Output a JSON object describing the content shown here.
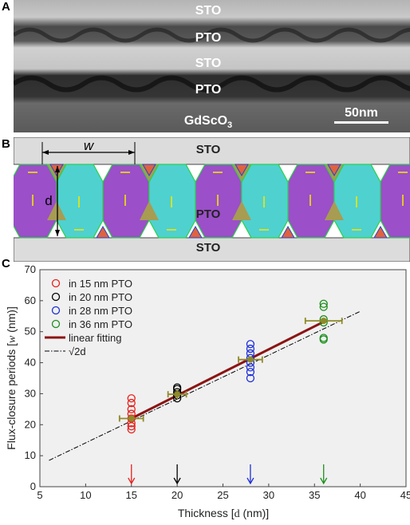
{
  "panel_a": {
    "letter": "A",
    "layers": [
      "STO",
      "PTO",
      "STO",
      "PTO",
      "GdScO3"
    ],
    "substrate_main": "GdScO",
    "substrate_sub": "3",
    "scale_bar": "50nm"
  },
  "panel_b": {
    "letter": "B",
    "top_label": "STO",
    "middle_label": "PTO",
    "bottom_label": "STO",
    "w_label": "w",
    "d_label": "d",
    "colors": {
      "magenta": "#9b4fc8",
      "cyan": "#4fd1d0",
      "olive": "#a79c52",
      "orange": "#e0623e",
      "arrow": "#f2e600"
    }
  },
  "panel_c": {
    "letter": "C",
    "chart_data": {
      "type": "scatter",
      "xlabel_main": "Thickness [",
      "xlabel_var": "d",
      "xlabel_unit": " (nm)]",
      "ylabel_main": "Flux-closure periods [",
      "ylabel_var": "w",
      "ylabel_unit": " (nm)]",
      "xlim": [
        5,
        45
      ],
      "ylim": [
        0,
        70
      ],
      "xticks": [
        5,
        10,
        15,
        20,
        25,
        30,
        35,
        40,
        45
      ],
      "yticks": [
        0,
        10,
        20,
        30,
        40,
        50,
        60,
        70
      ],
      "series": [
        {
          "name": "in 15 nm PTO",
          "color": "#e8201c",
          "x": 15,
          "values": [
            18.5,
            19.5,
            20.5,
            22,
            23.5,
            25,
            27,
            28.5
          ]
        },
        {
          "name": "in 20 nm PTO",
          "color": "#000000",
          "x": 20,
          "values": [
            28.5,
            29.5,
            30.5,
            31.5,
            32
          ]
        },
        {
          "name": "in 28 nm PTO",
          "color": "#1e2fd6",
          "x": 28,
          "values": [
            35,
            37,
            38.5,
            40,
            41.5,
            43,
            44.5,
            46
          ]
        },
        {
          "name": "in 36 nm PTO",
          "color": "#1c8f1c",
          "x": 36,
          "values": [
            47.5,
            48,
            53,
            54,
            58,
            59
          ]
        }
      ],
      "means": [
        {
          "x": 15,
          "y": 22,
          "xerr": 1.3,
          "yerr": 0
        },
        {
          "x": 20,
          "y": 29.8,
          "xerr": 1.0,
          "yerr": 1.5
        },
        {
          "x": 28,
          "y": 41,
          "xerr": 1.3,
          "yerr": 0
        },
        {
          "x": 36,
          "y": 53.5,
          "xerr": 2.0,
          "yerr": 0
        }
      ],
      "mean_color": "#8f8a2a",
      "fit": {
        "name": "linear fitting",
        "color": "#8b1414",
        "x": [
          15,
          36
        ],
        "y": [
          22,
          53.2
        ]
      },
      "reference": {
        "name": "√2d",
        "color": "#000000",
        "x": [
          6,
          40
        ]
      },
      "arrows": [
        {
          "x": 15,
          "color": "#e8201c"
        },
        {
          "x": 20,
          "color": "#000000"
        },
        {
          "x": 28,
          "color": "#1e2fd6"
        },
        {
          "x": 36,
          "color": "#1c8f1c"
        }
      ]
    }
  }
}
